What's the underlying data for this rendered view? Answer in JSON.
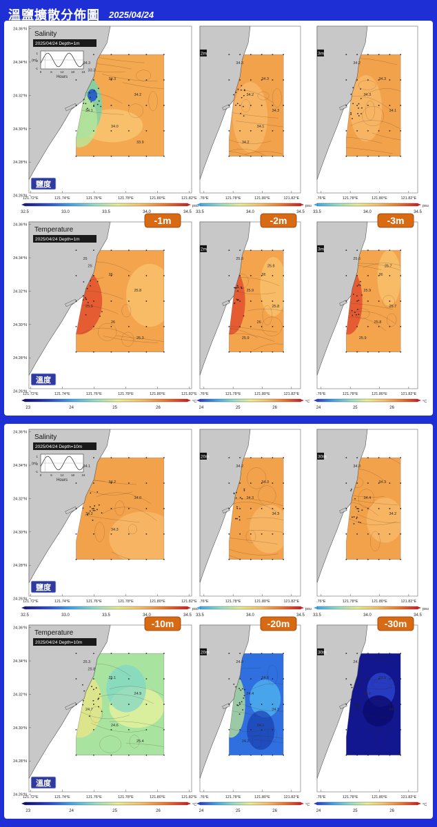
{
  "header": {
    "title": "溫鹽擴散分佈圖",
    "date": "2025/04/24"
  },
  "map_axes": {
    "lat_ticks": [
      "24.36°N",
      "24.34°N",
      "24.32°N",
      "24.30°N",
      "24.28°N",
      "24.26°N"
    ],
    "lon_ticks": [
      "121.72°E",
      "121.74°E",
      "121.76°E",
      "121.78°E",
      "121.80°E",
      "121.82°E"
    ],
    "lon_ticks_cropped": [
      ".76°E",
      "121.78°E",
      "121.80°E",
      "121.82°E"
    ]
  },
  "colorbars": {
    "salinity": {
      "ticks": [
        "32.5",
        "33.0",
        "33.5",
        "34.0",
        "34.5"
      ],
      "unit": "psu",
      "range": [
        32.5,
        34.5
      ]
    },
    "salinity_cropped": {
      "ticks": [
        "33.5",
        "34.0",
        "34.5"
      ]
    },
    "temperature": {
      "ticks": [
        "23",
        "24",
        "25",
        "26"
      ],
      "unit": "°C",
      "range": [
        22.5,
        26.5
      ]
    },
    "temperature_cropped": {
      "ticks": [
        "24",
        "25",
        "26"
      ]
    }
  },
  "labels": {
    "salinity_title": "Salinity",
    "temperature_title": "Temperature",
    "salinity_badge": "鹽度",
    "temperature_badge": "溫度",
    "hours": "Hours",
    "tide_unit": "(m)",
    "tide_x_ticks": [
      "0",
      "6",
      "12",
      "18",
      "24"
    ],
    "tide_y_ticks": [
      "1",
      "0",
      "-1"
    ]
  },
  "chart_data": [
    {
      "type": "heatmap",
      "group": "upper",
      "variable": "Salinity",
      "subtitle": "2025/04/24 Depth=1m",
      "depth_tags": [
        "-1m",
        "-2m",
        "-3m"
      ],
      "corner_labels": [
        "2m",
        "3m"
      ],
      "contour_labels": [
        [
          "34.3",
          "34.3",
          "34.2",
          "34.1",
          "34.0",
          "33.9",
          "33.3"
        ],
        [
          "34.3",
          "34.3",
          "34.2",
          "34.3",
          "34.1",
          "34.2"
        ],
        [
          "34.2",
          "34.3",
          "34.3",
          "34.1"
        ]
      ]
    },
    {
      "type": "heatmap",
      "group": "upper",
      "variable": "Temperature",
      "subtitle": "2025/04/24 Depth=1m",
      "corner_labels": [
        "2m",
        "3m"
      ],
      "contour_labels": [
        [
          "25",
          "26",
          "25.8",
          "25.9",
          "26",
          "25.3",
          "25"
        ],
        [
          "25.8",
          "26",
          "25.9",
          "25.8",
          "26",
          "25.9",
          "25.8"
        ],
        [
          "25.6",
          "26",
          "25.9",
          "25.7",
          "25.8",
          "25.9",
          "25.7"
        ]
      ]
    },
    {
      "type": "heatmap",
      "group": "lower",
      "variable": "Salinity",
      "subtitle": "2025/04/24 Depth=10m",
      "corner_labels": [
        "20m",
        "30m"
      ],
      "contour_labels": [
        [
          "34.1",
          "34.2",
          "34.0",
          "34.2",
          "34.3"
        ],
        [
          "34.2",
          "34.3",
          "34.3",
          "34.3"
        ],
        [
          "34.3",
          "34.3",
          "34.4",
          "34.2"
        ]
      ]
    },
    {
      "type": "heatmap",
      "group": "lower",
      "variable": "Temperature",
      "subtitle": "2025/04/24 Depth=10m",
      "depth_tags": [
        "-10m",
        "-20m",
        "-30m"
      ],
      "corner_labels": [
        "20m",
        "30m"
      ],
      "contour_labels": [
        [
          "25.3",
          "25.1",
          "24.9",
          "24.7",
          "24.6",
          "25.4",
          "25.8"
        ],
        [
          "24.8",
          "24.6",
          "24.4",
          "24.3",
          "24.1",
          "24.2"
        ],
        [
          "24.1",
          "23.9",
          "23.8",
          "24.0"
        ]
      ]
    }
  ]
}
